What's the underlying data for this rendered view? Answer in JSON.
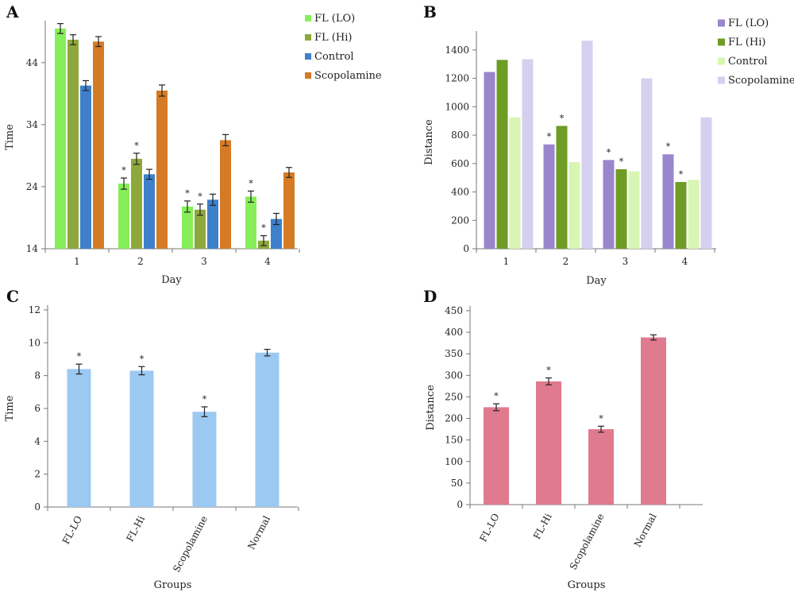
{
  "colors": {
    "fl_lo_a": "#86ee58",
    "fl_hi_a": "#8ea83c",
    "control_a": "#3e80cc",
    "scopolamine_a": "#d67b25",
    "fl_lo_b": "#9a86cc",
    "fl_hi_b": "#6e9c24",
    "control_b": "#d9f5b4",
    "scopolamine_b": "#d5cff0",
    "bar_c": "#9cc9f2",
    "bar_d": "#e07a8e",
    "axis": "#777777",
    "error": "#222222"
  },
  "chart_data": [
    {
      "panel": "A",
      "type": "bar",
      "xlabel": "Day",
      "ylabel": "Time",
      "categories": [
        "1",
        "2",
        "3",
        "4"
      ],
      "ylim": [
        14,
        50
      ],
      "yticks": [
        14,
        24,
        34,
        44
      ],
      "legend_position": "top-right",
      "grid": false,
      "series": [
        {
          "name": "FL (LO)",
          "color_key": "fl_lo_a",
          "values": [
            49.5,
            24.5,
            20.8,
            22.4
          ],
          "errors": [
            0.8,
            0.9,
            0.9,
            0.9
          ],
          "stars": [
            false,
            true,
            true,
            true
          ]
        },
        {
          "name": "FL (Hi)",
          "color_key": "fl_hi_a",
          "values": [
            47.7,
            28.5,
            20.3,
            15.3
          ],
          "errors": [
            0.8,
            0.9,
            0.9,
            0.8
          ],
          "stars": [
            false,
            true,
            true,
            true
          ]
        },
        {
          "name": "Control",
          "color_key": "control_a",
          "values": [
            40.3,
            26.0,
            21.9,
            18.8
          ],
          "errors": [
            0.8,
            0.8,
            0.9,
            0.9
          ],
          "stars": [
            false,
            false,
            false,
            false
          ]
        },
        {
          "name": "Scopolamine",
          "color_key": "scopolamine_a",
          "values": [
            47.4,
            39.5,
            31.5,
            26.3
          ],
          "errors": [
            0.8,
            0.9,
            0.9,
            0.8
          ],
          "stars": [
            false,
            false,
            false,
            false
          ]
        }
      ]
    },
    {
      "panel": "B",
      "type": "bar",
      "xlabel": "Day",
      "ylabel": "Distance",
      "categories": [
        "1",
        "2",
        "3",
        "4"
      ],
      "ylim": [
        0,
        1500
      ],
      "yticks": [
        0,
        200,
        400,
        600,
        800,
        1000,
        1200,
        1400
      ],
      "legend_position": "top-right",
      "grid": false,
      "series": [
        {
          "name": "FL (LO)",
          "color_key": "fl_lo_b",
          "values": [
            1245,
            735,
            625,
            665
          ],
          "errors": [
            0,
            0,
            0,
            0
          ],
          "stars": [
            false,
            true,
            true,
            true
          ]
        },
        {
          "name": "FL (Hi)",
          "color_key": "fl_hi_b",
          "values": [
            1330,
            865,
            560,
            470
          ],
          "errors": [
            0,
            0,
            0,
            0
          ],
          "stars": [
            false,
            true,
            true,
            true
          ]
        },
        {
          "name": "Control",
          "color_key": "control_b",
          "values": [
            925,
            610,
            545,
            485
          ],
          "errors": [
            0,
            0,
            0,
            0
          ],
          "stars": [
            false,
            false,
            false,
            false
          ]
        },
        {
          "name": "Scopolamine",
          "color_key": "scopolamine_b",
          "values": [
            1335,
            1465,
            1200,
            925
          ],
          "errors": [
            0,
            0,
            0,
            0
          ],
          "stars": [
            false,
            false,
            false,
            false
          ]
        }
      ]
    },
    {
      "panel": "C",
      "type": "bar",
      "xlabel": "Groups",
      "ylabel": "Time",
      "categories": [
        "FL-LO",
        "FL-Hi",
        "Scopolamine",
        "Normal"
      ],
      "ylim": [
        0,
        12
      ],
      "yticks": [
        0,
        2,
        4,
        6,
        8,
        10,
        12
      ],
      "grid": false,
      "series": [
        {
          "color_key": "bar_c",
          "values": [
            8.4,
            8.3,
            5.8,
            9.4
          ],
          "errors": [
            0.3,
            0.25,
            0.3,
            0.2
          ],
          "stars": [
            true,
            true,
            true,
            false
          ]
        }
      ]
    },
    {
      "panel": "D",
      "type": "bar",
      "xlabel": "Groups",
      "ylabel": "Distance",
      "categories": [
        "FL-LO",
        "FL-Hi",
        "Scopolamine",
        "Normal"
      ],
      "ylim": [
        0,
        450
      ],
      "yticks": [
        0,
        50,
        100,
        150,
        200,
        250,
        300,
        350,
        400,
        450
      ],
      "grid": false,
      "series": [
        {
          "color_key": "bar_d",
          "values": [
            226,
            286,
            175,
            388
          ],
          "errors": [
            8,
            8,
            7,
            6
          ],
          "stars": [
            true,
            true,
            true,
            false
          ]
        }
      ]
    }
  ]
}
